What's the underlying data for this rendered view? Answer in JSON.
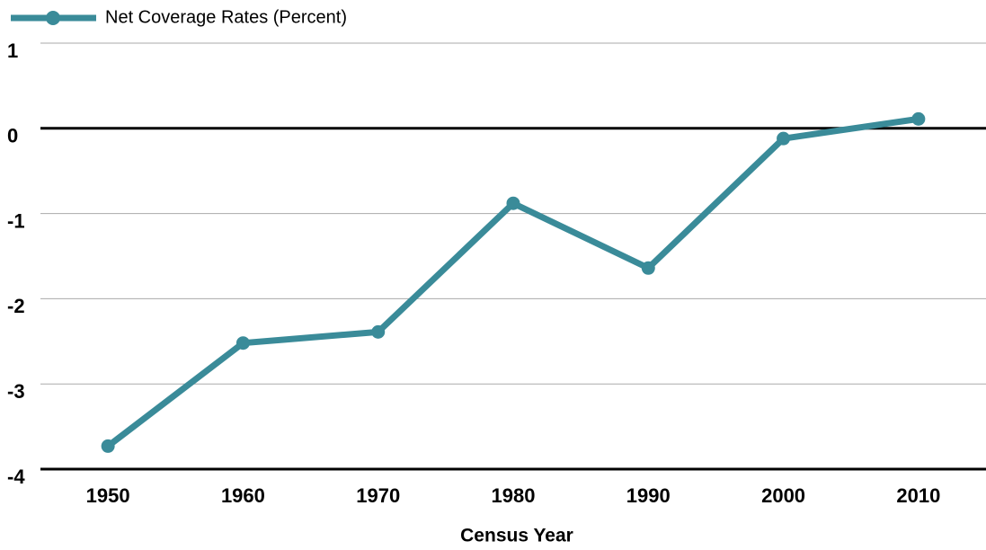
{
  "chart_data": {
    "type": "line",
    "categories": [
      "1950",
      "1960",
      "1970",
      "1980",
      "1990",
      "2000",
      "2010"
    ],
    "series": [
      {
        "name": "Net Coverage Rates (Percent)",
        "color": "#3a8b99",
        "values": [
          -3.73,
          -2.52,
          -2.39,
          -0.88,
          -1.64,
          -0.12,
          0.11
        ]
      }
    ],
    "x_label": "Census Year",
    "ylim": [
      -4,
      1
    ],
    "yticks": [
      -4,
      -3,
      -2,
      -1,
      0,
      1
    ],
    "grid": true,
    "legend": "top-left"
  }
}
